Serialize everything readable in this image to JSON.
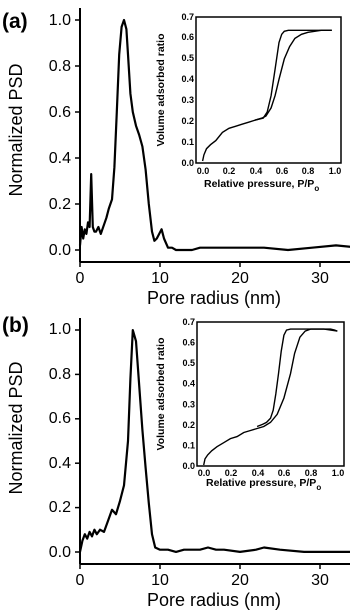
{
  "figure": {
    "panels": [
      {
        "label": "(a)",
        "main": {
          "xlabel": "Pore radius (nm)",
          "ylabel": "Normalized PSD",
          "xlim": [
            0,
            35
          ],
          "ylim": [
            -0.05,
            1.05
          ],
          "xticks": [
            0,
            10,
            20,
            30
          ],
          "yticks": [
            0.0,
            0.2,
            0.4,
            0.6,
            0.8,
            1.0
          ],
          "xtick_labels": [
            "0",
            "10",
            "20",
            "30"
          ],
          "ytick_labels": [
            "0.0",
            "0.2",
            "0.4",
            "0.6",
            "0.8",
            "1.0"
          ]
        },
        "inset": {
          "xlabel": "Relative pressure, P/P",
          "xlabel_sub": "o",
          "ylabel": "Volume adsorbed ratio",
          "xlim": [
            -0.05,
            1.05
          ],
          "ylim": [
            0,
            0.7
          ],
          "xticks": [
            0.0,
            0.2,
            0.4,
            0.6,
            0.8,
            1.0
          ],
          "yticks": [
            0.0,
            0.1,
            0.2,
            0.3,
            0.4,
            0.5,
            0.6,
            0.7
          ],
          "xtick_labels": [
            "0.0",
            "0.2",
            "0.4",
            "0.6",
            "0.8",
            "1.0"
          ],
          "ytick_labels": [
            "0.0",
            "0.1",
            "0.2",
            "0.3",
            "0.4",
            "0.5",
            "0.6",
            "0.7"
          ]
        }
      },
      {
        "label": "(b)",
        "main": {
          "xlabel": "Pore radius (nm)",
          "ylabel": "Normalized PSD",
          "xlim": [
            0,
            35
          ],
          "ylim": [
            -0.05,
            1.05
          ],
          "xticks": [
            0,
            10,
            20,
            30
          ],
          "yticks": [
            0.0,
            0.2,
            0.4,
            0.6,
            0.8,
            1.0
          ],
          "xtick_labels": [
            "0",
            "10",
            "20",
            "30"
          ],
          "ytick_labels": [
            "0.0",
            "0.2",
            "0.4",
            "0.6",
            "0.8",
            "1.0"
          ]
        },
        "inset": {
          "xlabel": "Relative pressure, P/P",
          "xlabel_sub": "o",
          "ylabel": "Volume adsorbed ratio",
          "xlim": [
            -0.05,
            1.05
          ],
          "ylim": [
            0,
            0.7
          ],
          "xticks": [
            0.0,
            0.2,
            0.4,
            0.6,
            0.8,
            1.0
          ],
          "yticks": [
            0.0,
            0.1,
            0.2,
            0.3,
            0.4,
            0.5,
            0.6,
            0.7
          ],
          "xtick_labels": [
            "0.0",
            "0.2",
            "0.4",
            "0.6",
            "0.8",
            "1.0"
          ],
          "ytick_labels": [
            "0.0",
            "0.1",
            "0.2",
            "0.3",
            "0.4",
            "0.5",
            "0.6",
            "0.7"
          ]
        }
      }
    ]
  },
  "chart_data": [
    {
      "type": "line",
      "panel": "(a)",
      "xlabel": "Pore radius (nm)",
      "ylabel": "Normalized PSD",
      "xlim": [
        0,
        35
      ],
      "ylim": [
        -0.05,
        1.05
      ],
      "grid": false,
      "series": [
        {
          "x": [
            0,
            0.2,
            0.4,
            0.6,
            0.8,
            1.0,
            1.2,
            1.4,
            1.6,
            1.8,
            2.0,
            2.3,
            2.6,
            3.0,
            3.3,
            3.6,
            4.0,
            4.3,
            4.6,
            4.9,
            5.2,
            5.5,
            5.8,
            6.0,
            6.3,
            6.6,
            7.0,
            7.4,
            7.8,
            8.2,
            8.6,
            9.0,
            9.3,
            9.6,
            9.9,
            10.2,
            10.5,
            11.0,
            11.5,
            12,
            13,
            14,
            15,
            17,
            20,
            23,
            26,
            29,
            32,
            35
          ],
          "y": [
            0.02,
            0.1,
            0.05,
            0.09,
            0.07,
            0.12,
            0.1,
            0.33,
            0.1,
            0.08,
            0.08,
            0.1,
            0.07,
            0.11,
            0.14,
            0.18,
            0.22,
            0.36,
            0.6,
            0.85,
            0.97,
            1.0,
            0.96,
            0.85,
            0.68,
            0.6,
            0.54,
            0.5,
            0.45,
            0.35,
            0.2,
            0.08,
            0.04,
            0.05,
            0.07,
            0.09,
            0.05,
            0.01,
            0.01,
            0.0,
            0.0,
            0.0,
            0.01,
            0.01,
            0.01,
            0.01,
            0.0,
            0.01,
            0.02,
            0.01
          ]
        }
      ]
    },
    {
      "type": "line",
      "panel": "(a) inset",
      "xlabel": "Relative pressure, P/Po",
      "ylabel": "Volume adsorbed ratio",
      "xlim": [
        -0.05,
        1.05
      ],
      "ylim": [
        0,
        0.7
      ],
      "grid": false,
      "series": [
        {
          "name": "",
          "x": [
            0.0,
            0.01,
            0.03,
            0.06,
            0.1,
            0.15,
            0.2,
            0.25,
            0.3,
            0.35,
            0.4,
            0.45,
            0.48,
            0.52,
            0.55,
            0.58,
            0.62,
            0.66,
            0.7,
            0.75,
            0.8,
            0.85,
            0.9,
            0.95,
            0.98
          ],
          "y": [
            0.0,
            0.03,
            0.06,
            0.08,
            0.1,
            0.14,
            0.16,
            0.17,
            0.18,
            0.19,
            0.2,
            0.21,
            0.22,
            0.26,
            0.32,
            0.4,
            0.5,
            0.56,
            0.6,
            0.62,
            0.63,
            0.635,
            0.64,
            0.64,
            0.64
          ]
        },
        {
          "name": "",
          "x": [
            0.98,
            0.9,
            0.8,
            0.7,
            0.65,
            0.62,
            0.6,
            0.58,
            0.55,
            0.52,
            0.49,
            0.46,
            0.43,
            0.4
          ],
          "y": [
            0.64,
            0.64,
            0.64,
            0.64,
            0.64,
            0.635,
            0.62,
            0.58,
            0.45,
            0.32,
            0.24,
            0.21,
            0.205,
            0.2
          ]
        }
      ]
    },
    {
      "type": "line",
      "panel": "(b)",
      "xlabel": "Pore radius (nm)",
      "ylabel": "Normalized PSD",
      "xlim": [
        0,
        35
      ],
      "ylim": [
        -0.05,
        1.05
      ],
      "grid": false,
      "series": [
        {
          "x": [
            0,
            0.3,
            0.6,
            0.9,
            1.2,
            1.5,
            1.8,
            2.1,
            2.5,
            3.0,
            3.5,
            4.0,
            4.5,
            5.0,
            5.5,
            6.0,
            6.3,
            6.6,
            7.0,
            7.4,
            7.8,
            8.2,
            8.6,
            9.0,
            9.4,
            10.0,
            11.0,
            12.0,
            13.0,
            14.0,
            15.0,
            16.0,
            17.0,
            18.0,
            20.0,
            22.0,
            23.0,
            25.0,
            28.0,
            30.0,
            32.0,
            35.0
          ],
          "y": [
            0.0,
            0.05,
            0.08,
            0.06,
            0.09,
            0.07,
            0.1,
            0.08,
            0.1,
            0.09,
            0.14,
            0.19,
            0.17,
            0.23,
            0.3,
            0.5,
            0.78,
            1.0,
            0.95,
            0.75,
            0.55,
            0.38,
            0.22,
            0.08,
            0.02,
            0.01,
            0.01,
            0.0,
            0.01,
            0.01,
            0.01,
            0.02,
            0.01,
            0.01,
            0.0,
            0.01,
            0.02,
            0.01,
            0.0,
            0.0,
            0.0,
            0.0
          ]
        }
      ]
    },
    {
      "type": "line",
      "panel": "(b) inset",
      "xlabel": "Relative pressure, P/Po",
      "ylabel": "Volume adsorbed ratio",
      "xlim": [
        -0.05,
        1.05
      ],
      "ylim": [
        0,
        0.7
      ],
      "grid": false,
      "series": [
        {
          "name": "",
          "x": [
            0.0,
            0.01,
            0.03,
            0.06,
            0.1,
            0.15,
            0.2,
            0.25,
            0.3,
            0.35,
            0.4,
            0.45,
            0.5,
            0.55,
            0.6,
            0.65,
            0.68,
            0.72,
            0.76,
            0.8,
            0.85,
            0.9,
            0.95,
            0.98,
            1.0
          ],
          "y": [
            0.0,
            0.03,
            0.05,
            0.07,
            0.09,
            0.11,
            0.13,
            0.14,
            0.16,
            0.17,
            0.18,
            0.19,
            0.21,
            0.25,
            0.33,
            0.45,
            0.55,
            0.63,
            0.66,
            0.67,
            0.67,
            0.67,
            0.67,
            0.665,
            0.66
          ]
        },
        {
          "name": "",
          "x": [
            1.0,
            0.95,
            0.9,
            0.8,
            0.7,
            0.65,
            0.62,
            0.6,
            0.58,
            0.56,
            0.54,
            0.52,
            0.5,
            0.47,
            0.44,
            0.4
          ],
          "y": [
            0.66,
            0.665,
            0.67,
            0.67,
            0.67,
            0.67,
            0.665,
            0.64,
            0.56,
            0.45,
            0.35,
            0.27,
            0.23,
            0.21,
            0.2,
            0.19
          ]
        }
      ]
    }
  ]
}
